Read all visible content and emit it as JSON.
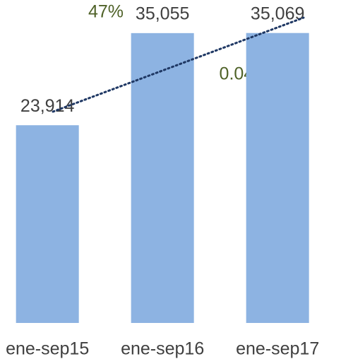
{
  "chart_data": {
    "type": "bar",
    "categories": [
      "ene-sep15",
      "ene-sep16",
      "ene-sep17"
    ],
    "values": [
      23914,
      35055,
      35069
    ],
    "value_labels": [
      "23,914",
      "35,055",
      "35,069"
    ],
    "color": "#8db3e2",
    "ylim": [
      0,
      40000
    ],
    "annotations": [
      "47%",
      "0.04%"
    ]
  }
}
